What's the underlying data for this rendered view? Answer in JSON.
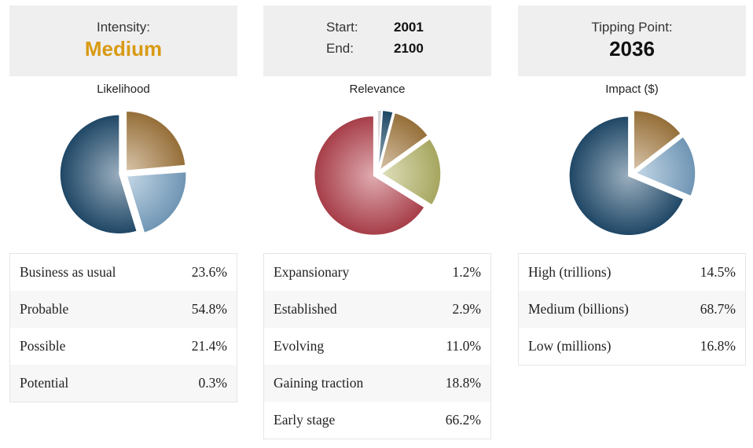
{
  "intensity": {
    "label": "Intensity:",
    "value": "Medium",
    "color": "#d99a14"
  },
  "range": {
    "start_label": "Start:",
    "start_value": "2001",
    "end_label": "End:",
    "end_value": "2100"
  },
  "tipping": {
    "label": "Tipping Point:",
    "value": "2036"
  },
  "chart_data": [
    {
      "type": "pie",
      "title": "Likelihood",
      "slices": [
        {
          "name": "Business as usual",
          "value": 23.6,
          "label": "23.6%",
          "color": "#a67a3e"
        },
        {
          "name": "Potential",
          "value": 0.3,
          "label": "0.3%",
          "color": "#1e4e6e"
        },
        {
          "name": "Possible",
          "value": 21.4,
          "label": "21.4%",
          "color": "#7ba6c8"
        },
        {
          "name": "Probable",
          "value": 54.8,
          "label": "54.8%",
          "color": "#214e70"
        }
      ],
      "table_order": [
        "Business as usual",
        "Probable",
        "Possible",
        "Potential"
      ]
    },
    {
      "type": "pie",
      "title": "Relevance",
      "slices": [
        {
          "name": "Expansionary",
          "value": 1.2,
          "label": "1.2%",
          "color": "#e8e8e8"
        },
        {
          "name": "Established",
          "value": 2.9,
          "label": "2.9%",
          "color": "#1e4e6e"
        },
        {
          "name": "Evolving",
          "value": 11.0,
          "label": "11.0%",
          "color": "#a67a3e"
        },
        {
          "name": "Gaining traction",
          "value": 18.8,
          "label": "18.8%",
          "color": "#b8b86a"
        },
        {
          "name": "Early stage",
          "value": 66.2,
          "label": "66.2%",
          "color": "#b84450"
        }
      ],
      "table_order": [
        "Expansionary",
        "Established",
        "Evolving",
        "Gaining traction",
        "Early stage"
      ]
    },
    {
      "type": "pie",
      "title": "Impact ($)",
      "slices": [
        {
          "name": "High (trillions)",
          "value": 14.5,
          "label": "14.5%",
          "color": "#a67a3e"
        },
        {
          "name": "Low (millions)",
          "value": 16.8,
          "label": "16.8%",
          "color": "#7ba6c8"
        },
        {
          "name": "Medium (billions)",
          "value": 68.7,
          "label": "68.7%",
          "color": "#214e70"
        }
      ],
      "table_order": [
        "High (trillions)",
        "Medium (billions)",
        "Low (millions)"
      ]
    }
  ]
}
